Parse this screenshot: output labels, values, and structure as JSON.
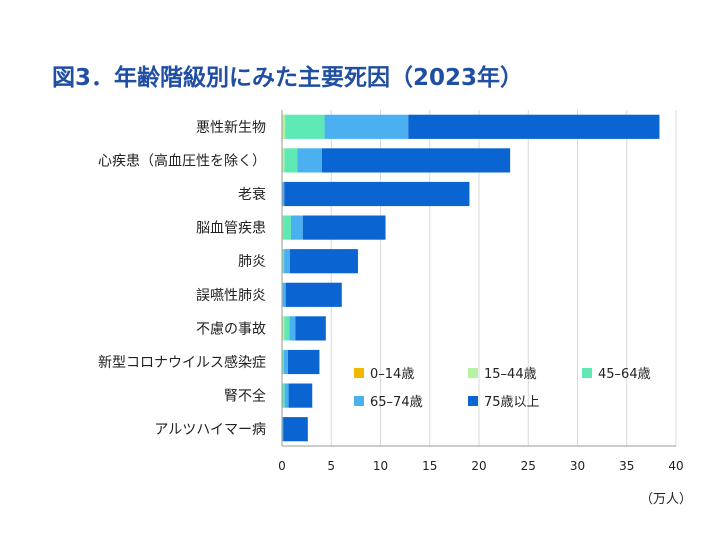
{
  "title": "図3．年齢階級別にみた主要死因（2023年）",
  "unit_label": "（万人）",
  "colors": {
    "series": [
      "#f2b800",
      "#b6f0a4",
      "#5ee8b4",
      "#4ab0f0",
      "#0a64d2"
    ],
    "grid": "#d9d9d9",
    "axis": "#999999",
    "title": "#1f4ea3"
  },
  "chart_data": {
    "type": "bar",
    "orientation": "horizontal",
    "stacked": true,
    "title": "図3．年齢階級別にみた主要死因（2023年）",
    "xlabel": "（万人）",
    "ylabel": "",
    "xlim": [
      0,
      40
    ],
    "xticks": [
      0,
      5,
      10,
      15,
      20,
      25,
      30,
      35,
      40
    ],
    "grid": "vertical",
    "legend_position": "lower-right-inside",
    "categories": [
      "悪性新生物",
      "心疾患（高血圧性を除く）",
      "老衰",
      "脳血管疾患",
      "肺炎",
      "誤嚥性肺炎",
      "不慮の事故",
      "新型コロナウイルス感染症",
      "腎不全",
      "アルツハイマー病"
    ],
    "series": [
      {
        "name": "0–14歳",
        "values": [
          0.02,
          0.01,
          0,
          0.01,
          0.01,
          0,
          0.05,
          0,
          0,
          0
        ]
      },
      {
        "name": "15–44歳",
        "values": [
          0.3,
          0.25,
          0,
          0.1,
          0.05,
          0.02,
          0.2,
          0.05,
          0.02,
          0
        ]
      },
      {
        "name": "45–64歳",
        "values": [
          4.0,
          1.3,
          0.03,
          0.8,
          0.15,
          0.05,
          0.5,
          0.15,
          0.25,
          0.02
        ]
      },
      {
        "name": "65–74歳",
        "values": [
          8.5,
          2.5,
          0.2,
          1.2,
          0.6,
          0.3,
          0.6,
          0.4,
          0.4,
          0.1
        ]
      },
      {
        "name": "75歳以上",
        "values": [
          25.5,
          19.1,
          18.8,
          8.4,
          6.9,
          5.7,
          3.1,
          3.2,
          2.4,
          2.5
        ]
      }
    ]
  }
}
